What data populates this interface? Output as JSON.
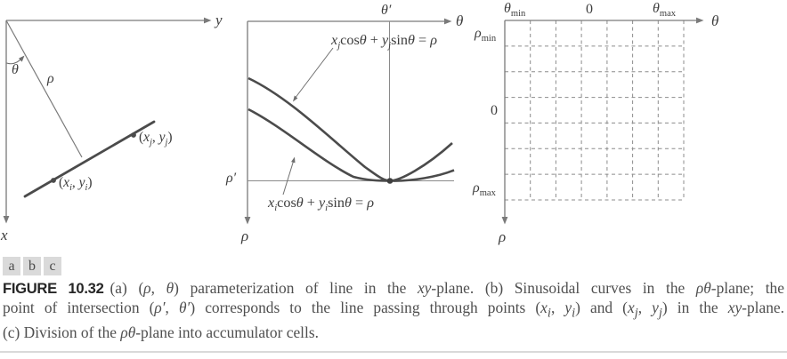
{
  "colors": {
    "axis_gray": "#7a7a7a",
    "curve_dark": "#4b4b4b",
    "grid_dash_gray": "#8c8c8c",
    "label_text": "#3d3d3d",
    "caption_text": "#4f4f4f",
    "figure_label_text": "#262626",
    "key_box_bg": "#dadada",
    "bottom_rule": "#d9d9d9"
  },
  "panel_a": {
    "y_axis_label": "y",
    "x_axis_label": "x",
    "theta_label": "θ",
    "rho_label": "ρ",
    "point_i_label": [
      {
        "t": "("
      },
      {
        "t": "x",
        "i": 1
      },
      {
        "t": "i",
        "i": 1,
        "sub": 1
      },
      {
        "t": ", "
      },
      {
        "t": "y",
        "i": 1
      },
      {
        "t": "i",
        "i": 1,
        "sub": 1
      },
      {
        "t": ")"
      }
    ],
    "point_j_label": [
      {
        "t": "("
      },
      {
        "t": "x",
        "i": 1
      },
      {
        "t": "j",
        "i": 1,
        "sub": 1
      },
      {
        "t": ", "
      },
      {
        "t": "y",
        "i": 1
      },
      {
        "t": "j",
        "i": 1,
        "sub": 1
      },
      {
        "t": ")"
      }
    ]
  },
  "panel_b": {
    "theta_axis_label": "θ",
    "theta_prime_label": "θ′",
    "rho_axis_label": "ρ",
    "rho_prime_label": "ρ′",
    "equation_j": [
      {
        "t": "x",
        "i": 1
      },
      {
        "t": "j",
        "i": 1,
        "sub": 1
      },
      {
        "t": "cos"
      },
      {
        "t": "θ",
        "i": 1
      },
      {
        "t": " + "
      },
      {
        "t": "y",
        "i": 1
      },
      {
        "t": "j",
        "i": 1,
        "sub": 1
      },
      {
        "t": "sin"
      },
      {
        "t": "θ",
        "i": 1
      },
      {
        "t": " = "
      },
      {
        "t": "ρ",
        "i": 1
      }
    ],
    "equation_i": [
      {
        "t": "x",
        "i": 1
      },
      {
        "t": "i",
        "i": 1,
        "sub": 1
      },
      {
        "t": "cos"
      },
      {
        "t": "θ",
        "i": 1
      },
      {
        "t": " + "
      },
      {
        "t": "y",
        "i": 1
      },
      {
        "t": "i",
        "i": 1,
        "sub": 1
      },
      {
        "t": "sin"
      },
      {
        "t": "θ",
        "i": 1
      },
      {
        "t": " = "
      },
      {
        "t": "ρ",
        "i": 1
      }
    ]
  },
  "panel_c": {
    "theta_min_label": [
      {
        "t": "θ",
        "i": 1
      },
      {
        "t": "min",
        "sub": 1
      }
    ],
    "zero_top_label": "0",
    "theta_max_label": [
      {
        "t": "θ",
        "i": 1
      },
      {
        "t": "max",
        "sub": 1
      }
    ],
    "theta_axis_label": "θ",
    "rho_min_label": [
      {
        "t": "ρ",
        "i": 1
      },
      {
        "t": "min",
        "sub": 1
      }
    ],
    "zero_left_label": "0",
    "rho_max_label": [
      {
        "t": "ρ",
        "i": 1
      },
      {
        "t": "max",
        "sub": 1
      }
    ],
    "rho_axis_label": "ρ",
    "grid_columns": 7,
    "grid_rows": 7
  },
  "key_boxes": {
    "a": "a",
    "b": "b",
    "c": "c"
  },
  "caption": {
    "figure_label": "FIGURE 10.32",
    "lines": [
      [
        {
          "t": "(a) ("
        },
        {
          "t": "ρ",
          "i": 1
        },
        {
          "t": ", "
        },
        {
          "t": "θ",
          "i": 1
        },
        {
          "t": ") parameterization of line in the "
        },
        {
          "t": "xy",
          "i": 1
        },
        {
          "t": "-plane. (b) Sinusoidal curves in the "
        },
        {
          "t": "ρθ",
          "i": 1
        },
        {
          "t": "-plane; the"
        }
      ],
      [
        {
          "t": "point of intersection ("
        },
        {
          "t": "ρ′",
          "i": 1
        },
        {
          "t": ", "
        },
        {
          "t": "θ′",
          "i": 1
        },
        {
          "t": ") corresponds to the line passing through points ("
        },
        {
          "t": "x",
          "i": 1
        },
        {
          "t": "i",
          "i": 1,
          "sub": 1
        },
        {
          "t": ", "
        },
        {
          "t": "y",
          "i": 1
        },
        {
          "t": "i",
          "i": 1,
          "sub": 1
        },
        {
          "t": ") and ("
        },
        {
          "t": "x",
          "i": 1
        },
        {
          "t": "j",
          "i": 1,
          "sub": 1
        },
        {
          "t": ", "
        },
        {
          "t": "y",
          "i": 1
        },
        {
          "t": "j",
          "i": 1,
          "sub": 1
        },
        {
          "t": ") in the "
        },
        {
          "t": "xy",
          "i": 1
        },
        {
          "t": "-plane."
        }
      ],
      [
        {
          "t": "(c) Division of the "
        },
        {
          "t": "ρθ",
          "i": 1
        },
        {
          "t": "-plane into accumulator cells."
        }
      ]
    ]
  }
}
